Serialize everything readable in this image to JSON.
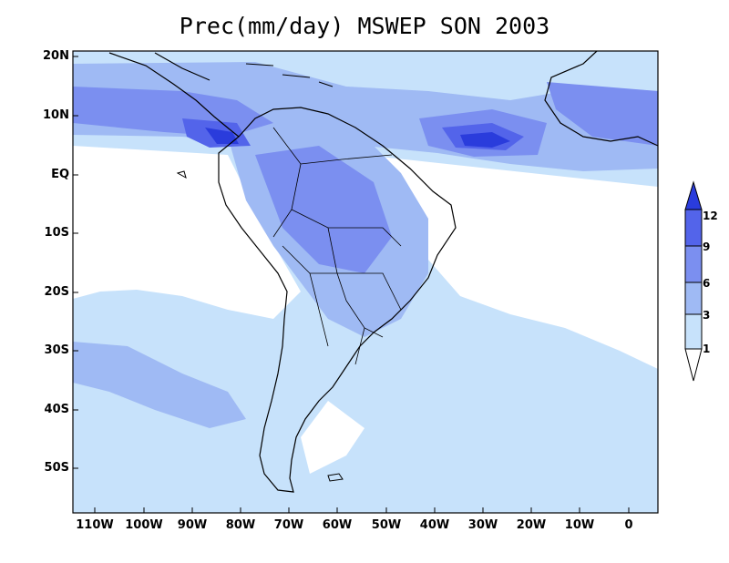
{
  "title": "Prec(mm/day) MSWEP SON 2003",
  "map": {
    "region": "South America",
    "variable": "Precipitation",
    "units": "mm/day",
    "dataset": "MSWEP",
    "season": "SON",
    "year": "2003",
    "lat_labels": [
      "20N",
      "10N",
      "EQ",
      "10S",
      "20S",
      "30S",
      "40S",
      "50S"
    ],
    "lon_labels": [
      "110W",
      "100W",
      "90W",
      "80W",
      "70W",
      "60W",
      "50W",
      "40W",
      "30W",
      "20W",
      "10W",
      "0"
    ],
    "lon_range": [
      -115,
      7
    ],
    "lat_range": [
      -58,
      22
    ]
  },
  "colorbar": {
    "levels": [
      "12",
      "9",
      "6",
      "3",
      "1"
    ],
    "colors": {
      "below_1": "#ffffff",
      "l1_3": "#c7e2fb",
      "l3_6": "#9fbaf4",
      "l6_9": "#7b8ff0",
      "l9_12": "#5364ea",
      "above_12": "#2a3cdc"
    }
  }
}
